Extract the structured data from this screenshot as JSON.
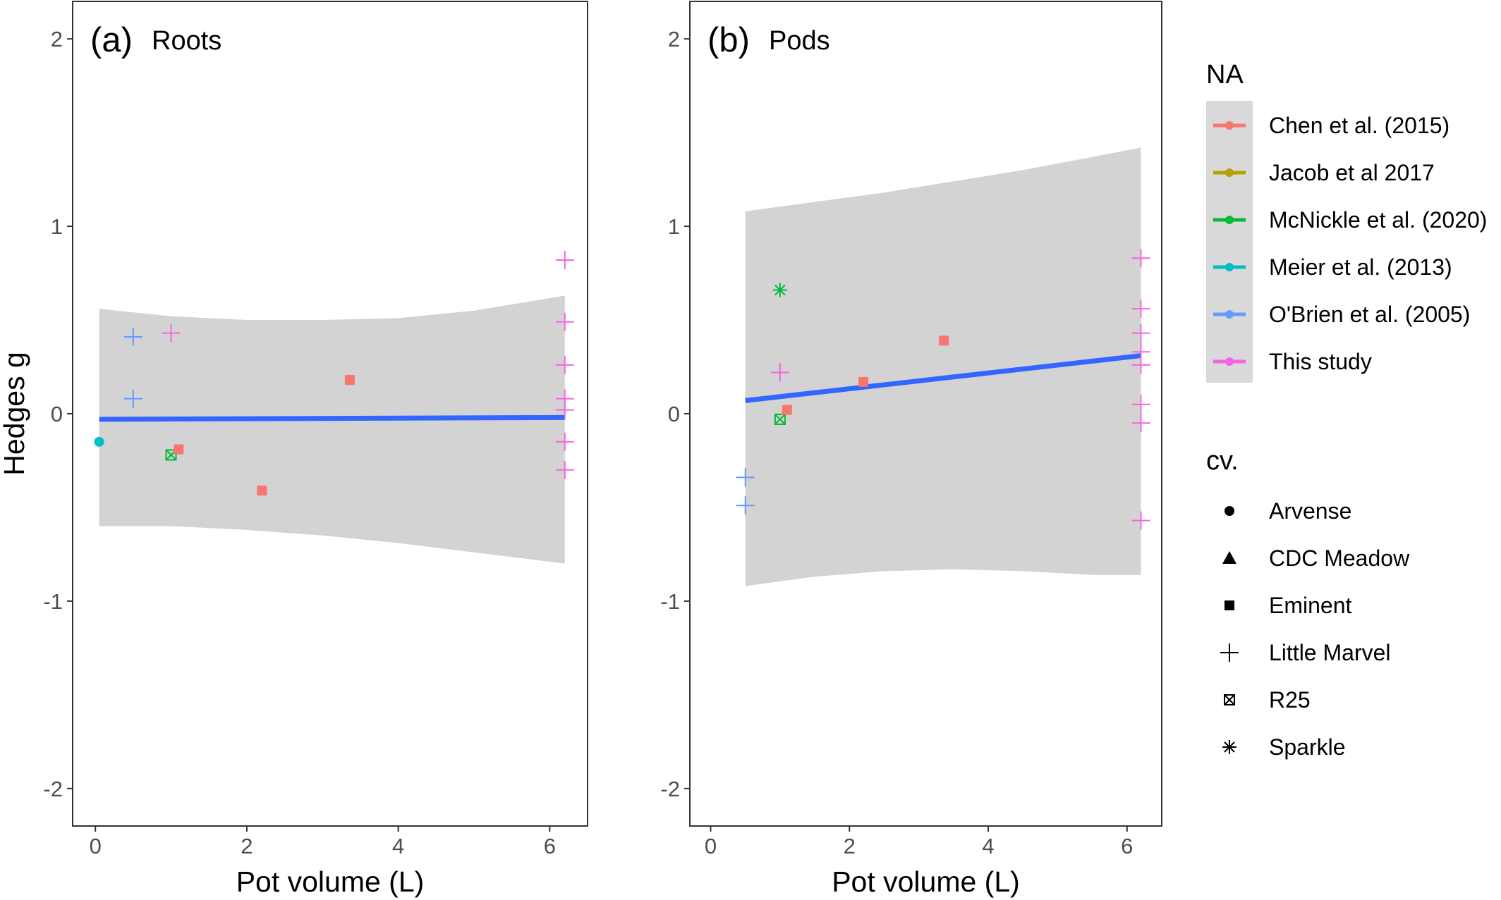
{
  "chart_data": [
    {
      "type": "scatter",
      "tag": "(a)",
      "title": "Roots",
      "xlabel": "Pot volume (L)",
      "ylabel": "Hedges g",
      "xlim": [
        -0.3,
        6.5
      ],
      "ylim": [
        -2.2,
        2.2
      ],
      "xticks": [
        0,
        2,
        4,
        6
      ],
      "xtick_labels": [
        "0",
        "2",
        "4",
        "6"
      ],
      "yticks": [
        2,
        1,
        0,
        -1,
        -2
      ],
      "ytick_labels": [
        "2",
        "1",
        "0",
        "-1",
        "-2"
      ],
      "grid": false,
      "fit_line": {
        "x": [
          0.05,
          6.2
        ],
        "y": [
          -0.03,
          -0.02
        ]
      },
      "confidence_band": {
        "x": [
          0.05,
          1,
          2,
          3,
          4,
          5,
          6.2
        ],
        "upper": [
          0.56,
          0.52,
          0.5,
          0.5,
          0.51,
          0.55,
          0.63
        ],
        "lower": [
          -0.6,
          -0.6,
          -0.62,
          -0.65,
          -0.69,
          -0.74,
          -0.8
        ]
      },
      "points": [
        {
          "x": 0.05,
          "y": -0.15,
          "study": "Meier et al. (2013)",
          "cultivar": "Arvense"
        },
        {
          "x": 0.5,
          "y": 0.41,
          "study": "O'Brien et al. (2005)",
          "cultivar": "Little Marvel"
        },
        {
          "x": 0.5,
          "y": 0.08,
          "study": "O'Brien et al. (2005)",
          "cultivar": "Little Marvel"
        },
        {
          "x": 1.0,
          "y": 0.43,
          "study": "This study",
          "cultivar": "Little Marvel"
        },
        {
          "x": 1.0,
          "y": -0.22,
          "study": "McNickle et al. (2020)",
          "cultivar": "R25"
        },
        {
          "x": 1.1,
          "y": -0.19,
          "study": "Chen et al. (2015)",
          "cultivar": "Eminent"
        },
        {
          "x": 2.2,
          "y": -0.41,
          "study": "Chen et al. (2015)",
          "cultivar": "Eminent"
        },
        {
          "x": 3.36,
          "y": 0.18,
          "study": "Chen et al. (2015)",
          "cultivar": "Eminent"
        },
        {
          "x": 6.2,
          "y": 0.82,
          "study": "This study",
          "cultivar": "Little Marvel"
        },
        {
          "x": 6.2,
          "y": 0.49,
          "study": "This study",
          "cultivar": "Little Marvel"
        },
        {
          "x": 6.2,
          "y": 0.26,
          "study": "This study",
          "cultivar": "Little Marvel"
        },
        {
          "x": 6.2,
          "y": 0.08,
          "study": "This study",
          "cultivar": "Little Marvel"
        },
        {
          "x": 6.2,
          "y": 0.02,
          "study": "This study",
          "cultivar": "Little Marvel"
        },
        {
          "x": 6.2,
          "y": -0.15,
          "study": "This study",
          "cultivar": "Little Marvel"
        },
        {
          "x": 6.2,
          "y": -0.3,
          "study": "This study",
          "cultivar": "Little Marvel"
        }
      ]
    },
    {
      "type": "scatter",
      "tag": "(b)",
      "title": "Pods",
      "xlabel": "Pot volume (L)",
      "ylabel": "",
      "xlim": [
        -0.3,
        6.5
      ],
      "ylim": [
        -2.2,
        2.2
      ],
      "xticks": [
        0,
        2,
        4,
        6
      ],
      "xtick_labels": [
        "0",
        "2",
        "4",
        "6"
      ],
      "yticks": [
        2,
        1,
        0,
        -1,
        -2
      ],
      "ytick_labels": [
        "2",
        "1",
        "0",
        "-1",
        "-2"
      ],
      "grid": false,
      "fit_line": {
        "x": [
          0.5,
          6.2
        ],
        "y": [
          0.07,
          0.31
        ]
      },
      "confidence_band": {
        "x": [
          0.5,
          1.5,
          2.5,
          3.5,
          4.5,
          5.5,
          6.2
        ],
        "upper": [
          1.08,
          1.13,
          1.18,
          1.24,
          1.3,
          1.37,
          1.42
        ],
        "lower": [
          -0.92,
          -0.87,
          -0.84,
          -0.83,
          -0.84,
          -0.86,
          -0.86
        ]
      },
      "points": [
        {
          "x": 0.5,
          "y": -0.34,
          "study": "O'Brien et al. (2005)",
          "cultivar": "Little Marvel"
        },
        {
          "x": 0.5,
          "y": -0.49,
          "study": "O'Brien et al. (2005)",
          "cultivar": "Little Marvel"
        },
        {
          "x": 1.0,
          "y": 0.66,
          "study": "McNickle et al. (2020)",
          "cultivar": "Sparkle"
        },
        {
          "x": 1.0,
          "y": 0.22,
          "study": "This study",
          "cultivar": "Little Marvel"
        },
        {
          "x": 1.0,
          "y": -0.03,
          "study": "McNickle et al. (2020)",
          "cultivar": "R25"
        },
        {
          "x": 1.1,
          "y": 0.02,
          "study": "Chen et al. (2015)",
          "cultivar": "Eminent"
        },
        {
          "x": 2.2,
          "y": 0.17,
          "study": "Chen et al. (2015)",
          "cultivar": "Eminent"
        },
        {
          "x": 3.36,
          "y": 0.39,
          "study": "Chen et al. (2015)",
          "cultivar": "Eminent"
        },
        {
          "x": 6.2,
          "y": 0.83,
          "study": "This study",
          "cultivar": "Little Marvel"
        },
        {
          "x": 6.2,
          "y": 0.56,
          "study": "This study",
          "cultivar": "Little Marvel"
        },
        {
          "x": 6.2,
          "y": 0.43,
          "study": "This study",
          "cultivar": "Little Marvel"
        },
        {
          "x": 6.2,
          "y": 0.33,
          "study": "This study",
          "cultivar": "Little Marvel"
        },
        {
          "x": 6.2,
          "y": 0.26,
          "study": "This study",
          "cultivar": "Little Marvel"
        },
        {
          "x": 6.2,
          "y": 0.05,
          "study": "This study",
          "cultivar": "Little Marvel"
        },
        {
          "x": 6.2,
          "y": -0.05,
          "study": "This study",
          "cultivar": "Little Marvel"
        },
        {
          "x": 6.2,
          "y": -0.57,
          "study": "This study",
          "cultivar": "Little Marvel"
        }
      ]
    }
  ],
  "legend": {
    "placement": "right",
    "color_title": "NA",
    "studies": [
      {
        "label": "Chen et al. (2015)",
        "color": "#F8766D"
      },
      {
        "label": "Jacob et al 2017",
        "color": "#B79F00"
      },
      {
        "label": "McNickle et al. (2020)",
        "color": "#00BA38"
      },
      {
        "label": "Meier et al. (2013)",
        "color": "#00BFC4"
      },
      {
        "label": "O'Brien et al. (2005)",
        "color": "#619CFF"
      },
      {
        "label": "This study",
        "color": "#F564E3"
      }
    ],
    "shape_title": "cv.",
    "cultivars": [
      {
        "label": "Arvense",
        "shape": "circle"
      },
      {
        "label": "CDC Meadow",
        "shape": "triangle"
      },
      {
        "label": "Eminent",
        "shape": "square"
      },
      {
        "label": "Little Marvel",
        "shape": "plus"
      },
      {
        "label": "R25",
        "shape": "square-x"
      },
      {
        "label": "Sparkle",
        "shape": "asterisk"
      }
    ]
  },
  "colors": {
    "fit_line": "#3366FF",
    "band": "#D3D3D3",
    "panel_border": "#333333",
    "legend_key_bg": "#D9D9D9",
    "tick_text": "#4d4d4d"
  }
}
